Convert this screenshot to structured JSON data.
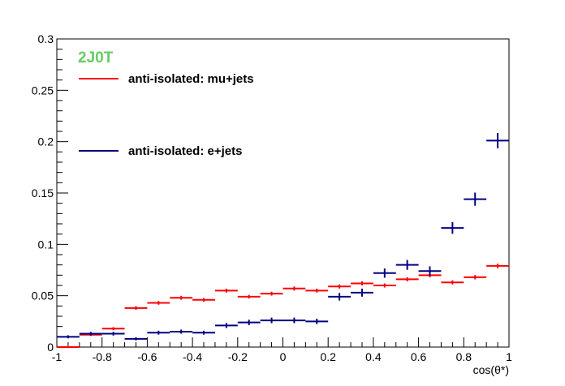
{
  "chart_data": {
    "type": "scatter",
    "title": "",
    "tag": "2J0T",
    "tag_color": "#66cc66",
    "xlabel": "cos(θ*)",
    "ylabel": "",
    "xlim": [
      -1,
      1
    ],
    "ylim": [
      0,
      0.3
    ],
    "x_ticks": [
      -1,
      -0.8,
      -0.6,
      -0.4,
      -0.2,
      0,
      0.2,
      0.4,
      0.6,
      0.8,
      1
    ],
    "x_tick_labels": [
      "-1",
      "-0.8",
      "-0.6",
      "-0.4",
      "-0.2",
      "0",
      "0.2",
      "0.4",
      "0.6",
      "0.8",
      "1"
    ],
    "y_ticks": [
      0,
      0.05,
      0.1,
      0.15,
      0.2,
      0.25,
      0.3
    ],
    "y_tick_labels": [
      "0",
      "0.05",
      "0.1",
      "0.15",
      "0.2",
      "0.25",
      "0.3"
    ],
    "grid": false,
    "legend_position": "top-left",
    "bin_width": 0.1,
    "series": [
      {
        "name": "anti-isolated: mu+jets",
        "color": "#ff0000",
        "x": [
          -0.95,
          -0.85,
          -0.75,
          -0.65,
          -0.55,
          -0.45,
          -0.35,
          -0.25,
          -0.15,
          -0.05,
          0.05,
          0.15,
          0.25,
          0.35,
          0.45,
          0.55,
          0.65,
          0.75,
          0.85,
          0.95
        ],
        "y": [
          0.0,
          0.012,
          0.018,
          0.038,
          0.043,
          0.048,
          0.046,
          0.055,
          0.049,
          0.052,
          0.057,
          0.055,
          0.059,
          0.062,
          0.06,
          0.066,
          0.07,
          0.063,
          0.068,
          0.079
        ],
        "err": [
          0.0005,
          0.0012,
          0.0014,
          0.0018,
          0.0018,
          0.0019,
          0.0018,
          0.0019,
          0.0018,
          0.0019,
          0.002,
          0.0019,
          0.002,
          0.002,
          0.002,
          0.002,
          0.0021,
          0.002,
          0.0021,
          0.0022
        ]
      },
      {
        "name": "anti-isolated: e+jets",
        "color": "#000080",
        "x": [
          -0.95,
          -0.85,
          -0.75,
          -0.65,
          -0.55,
          -0.45,
          -0.35,
          -0.25,
          -0.15,
          -0.05,
          0.05,
          0.15,
          0.25,
          0.35,
          0.45,
          0.55,
          0.65,
          0.75,
          0.85,
          0.95
        ],
        "y": [
          0.01,
          0.013,
          0.013,
          0.008,
          0.014,
          0.015,
          0.014,
          0.021,
          0.024,
          0.026,
          0.026,
          0.025,
          0.049,
          0.053,
          0.072,
          0.08,
          0.074,
          0.116,
          0.144,
          0.201
        ],
        "err": [
          0.0015,
          0.0018,
          0.0018,
          0.0015,
          0.0019,
          0.002,
          0.0019,
          0.0024,
          0.0026,
          0.0027,
          0.0027,
          0.0026,
          0.0037,
          0.0039,
          0.0045,
          0.0048,
          0.0046,
          0.0057,
          0.0064,
          0.0075
        ]
      }
    ]
  }
}
